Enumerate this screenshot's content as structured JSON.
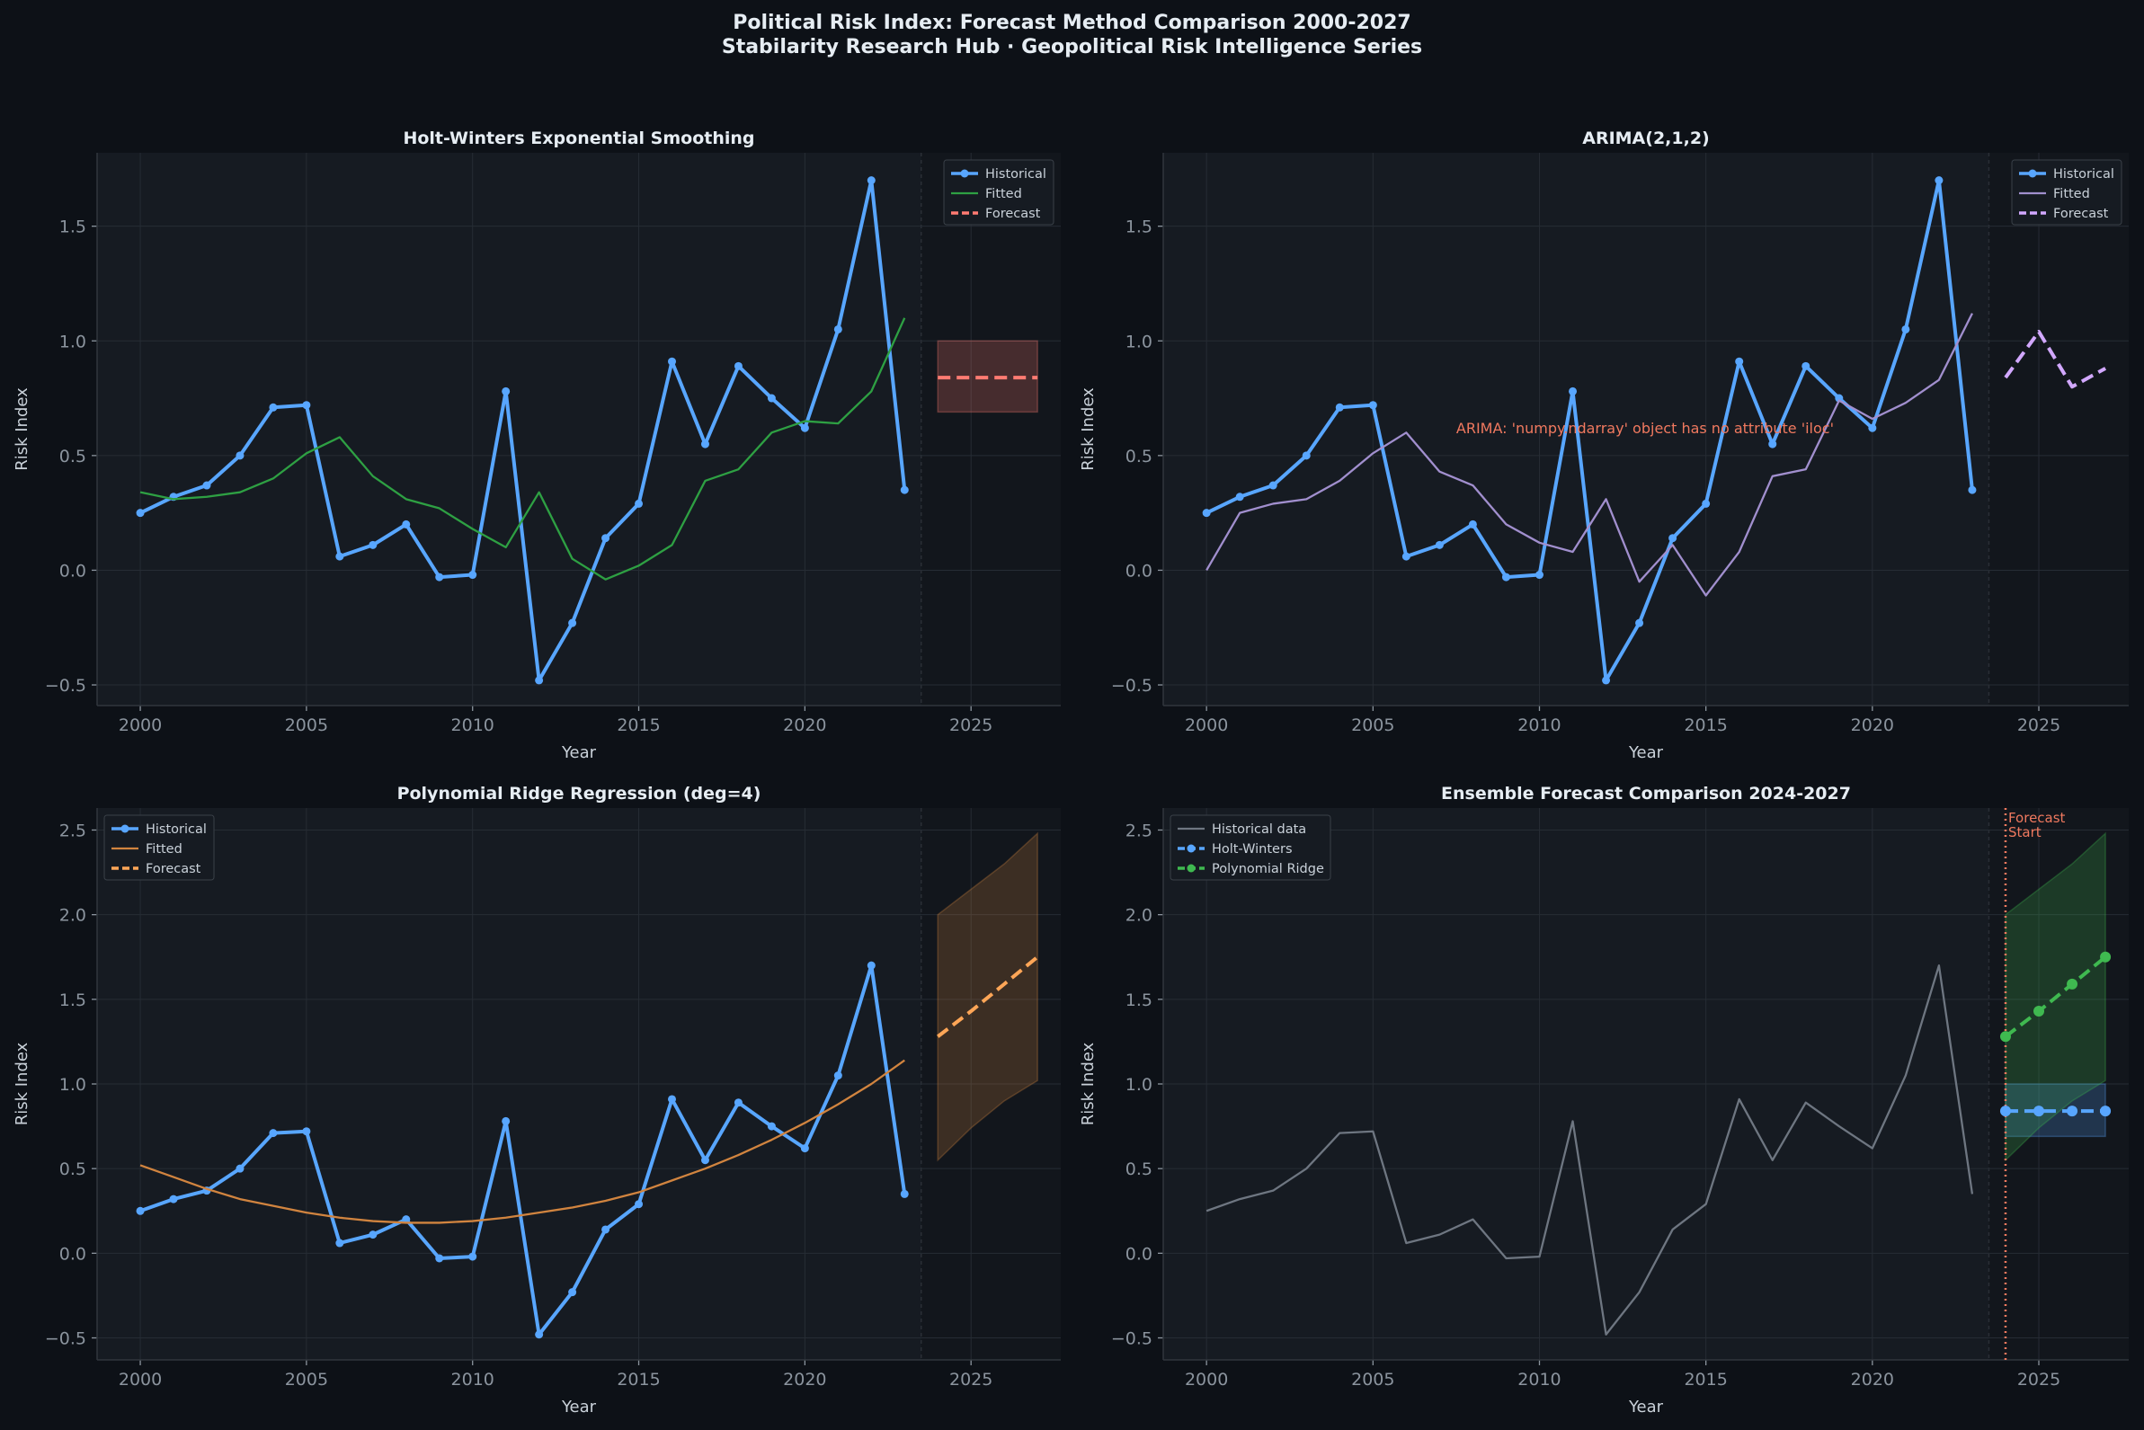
{
  "suptitle": [
    "Political Risk Index: Forecast Method Comparison 2000-2027",
    "Stabilarity Research Hub · Geopolitical Risk Intelligence Series"
  ],
  "colors": {
    "figure_bg": "#0d1117",
    "axes_bg": "#161b22",
    "historical": "#58a6ff",
    "hw_fitted": "#2ea043",
    "hw_forecast": "#ff7b72",
    "arima_fitted": "#a18fce",
    "arima_forecast": "#d2a8ff",
    "poly_fitted": "#d1843f",
    "poly_forecast": "#ffa657",
    "ens_hist": "#6e7681",
    "ens_poly": "#3fb950",
    "forecast_start": "#f0795f",
    "annotation": "#f0795f"
  },
  "chart_data": [
    {
      "type": "line",
      "title": "Holt-Winters Exponential Smoothing",
      "xlabel": "Year",
      "ylabel": "Risk Index",
      "xlim": [
        1998.7,
        2027.7
      ],
      "ylim": [
        -0.59,
        1.82
      ],
      "xticks": [
        2000,
        2005,
        2010,
        2015,
        2020,
        2025
      ],
      "yticks": [
        -0.5,
        0.0,
        0.5,
        1.0,
        1.5
      ],
      "grid": true,
      "legend_position": "top-right",
      "legend": [
        "Historical",
        "Fitted",
        "Forecast"
      ],
      "series": [
        {
          "name": "Historical",
          "x": [
            2000,
            2001,
            2002,
            2003,
            2004,
            2005,
            2006,
            2007,
            2008,
            2009,
            2010,
            2011,
            2012,
            2013,
            2014,
            2015,
            2016,
            2017,
            2018,
            2019,
            2020,
            2021,
            2022,
            2023
          ],
          "y": [
            0.25,
            0.32,
            0.37,
            0.5,
            0.71,
            0.72,
            0.06,
            0.11,
            0.2,
            -0.03,
            -0.02,
            0.78,
            -0.48,
            -0.23,
            0.14,
            0.29,
            0.91,
            0.55,
            0.89,
            0.75,
            0.62,
            1.05,
            1.7,
            0.35
          ],
          "color": "historical",
          "style": "solid-marker"
        },
        {
          "name": "Fitted",
          "x": [
            2000,
            2001,
            2002,
            2003,
            2004,
            2005,
            2006,
            2007,
            2008,
            2009,
            2010,
            2011,
            2012,
            2013,
            2014,
            2015,
            2016,
            2017,
            2018,
            2019,
            2020,
            2021,
            2022,
            2023
          ],
          "y": [
            0.34,
            0.31,
            0.32,
            0.34,
            0.4,
            0.51,
            0.58,
            0.41,
            0.31,
            0.27,
            0.18,
            0.1,
            0.34,
            0.05,
            -0.04,
            0.02,
            0.11,
            0.39,
            0.44,
            0.6,
            0.65,
            0.64,
            0.78,
            1.1
          ],
          "color": "hw_fitted",
          "style": "thin"
        },
        {
          "name": "Forecast",
          "x": [
            2024,
            2025,
            2026,
            2027
          ],
          "y": [
            0.84,
            0.84,
            0.84,
            0.84
          ],
          "color": "hw_forecast",
          "style": "dashed"
        }
      ],
      "bands": [
        {
          "x": [
            2024,
            2025,
            2026,
            2027
          ],
          "lower": [
            0.69,
            0.69,
            0.69,
            0.69
          ],
          "upper": [
            1.0,
            1.0,
            1.0,
            1.0
          ],
          "color": "hw_forecast"
        }
      ]
    },
    {
      "type": "line",
      "title": "ARIMA(2,1,2)",
      "xlabel": "Year",
      "ylabel": "Risk Index",
      "xlim": [
        1998.7,
        2027.7
      ],
      "ylim": [
        -0.59,
        1.82
      ],
      "xticks": [
        2000,
        2005,
        2010,
        2015,
        2020,
        2025
      ],
      "yticks": [
        -0.5,
        0.0,
        0.5,
        1.0,
        1.5
      ],
      "grid": true,
      "legend_position": "top-right",
      "legend": [
        "Historical",
        "Fitted",
        "Forecast"
      ],
      "annotation": {
        "text": "ARIMA: 'numpy.ndarray' object has no attribute 'iloc'",
        "x": 2007.5,
        "y": 0.62
      },
      "series": [
        {
          "name": "Historical",
          "x": [
            2000,
            2001,
            2002,
            2003,
            2004,
            2005,
            2006,
            2007,
            2008,
            2009,
            2010,
            2011,
            2012,
            2013,
            2014,
            2015,
            2016,
            2017,
            2018,
            2019,
            2020,
            2021,
            2022,
            2023
          ],
          "y": [
            0.25,
            0.32,
            0.37,
            0.5,
            0.71,
            0.72,
            0.06,
            0.11,
            0.2,
            -0.03,
            -0.02,
            0.78,
            -0.48,
            -0.23,
            0.14,
            0.29,
            0.91,
            0.55,
            0.89,
            0.75,
            0.62,
            1.05,
            1.7,
            0.35
          ],
          "color": "historical",
          "style": "solid-marker"
        },
        {
          "name": "Fitted",
          "x": [
            2000,
            2001,
            2002,
            2003,
            2004,
            2005,
            2006,
            2007,
            2008,
            2009,
            2010,
            2011,
            2012,
            2013,
            2014,
            2015,
            2016,
            2017,
            2018,
            2019,
            2020,
            2021,
            2022,
            2023
          ],
          "y": [
            0.0,
            0.25,
            0.29,
            0.31,
            0.39,
            0.51,
            0.6,
            0.43,
            0.37,
            0.2,
            0.12,
            0.08,
            0.31,
            -0.05,
            0.11,
            -0.11,
            0.08,
            0.41,
            0.44,
            0.74,
            0.66,
            0.73,
            0.83,
            1.12
          ],
          "color": "arima_fitted",
          "style": "thin"
        },
        {
          "name": "Forecast",
          "x": [
            2024,
            2025,
            2026,
            2027
          ],
          "y": [
            0.84,
            1.04,
            0.8,
            0.88
          ],
          "color": "arima_forecast",
          "style": "dashed"
        }
      ],
      "bands": []
    },
    {
      "type": "line",
      "title": "Polynomial Ridge Regression (deg=4)",
      "xlabel": "Year",
      "ylabel": "Risk Index",
      "xlim": [
        1998.7,
        2027.7
      ],
      "ylim": [
        -0.63,
        2.63
      ],
      "xticks": [
        2000,
        2005,
        2010,
        2015,
        2020,
        2025
      ],
      "yticks": [
        -0.5,
        0.0,
        0.5,
        1.0,
        1.5,
        2.0,
        2.5
      ],
      "grid": true,
      "legend_position": "top-left",
      "legend": [
        "Historical",
        "Fitted",
        "Forecast"
      ],
      "series": [
        {
          "name": "Historical",
          "x": [
            2000,
            2001,
            2002,
            2003,
            2004,
            2005,
            2006,
            2007,
            2008,
            2009,
            2010,
            2011,
            2012,
            2013,
            2014,
            2015,
            2016,
            2017,
            2018,
            2019,
            2020,
            2021,
            2022,
            2023
          ],
          "y": [
            0.25,
            0.32,
            0.37,
            0.5,
            0.71,
            0.72,
            0.06,
            0.11,
            0.2,
            -0.03,
            -0.02,
            0.78,
            -0.48,
            -0.23,
            0.14,
            0.29,
            0.91,
            0.55,
            0.89,
            0.75,
            0.62,
            1.05,
            1.7,
            0.35
          ],
          "color": "historical",
          "style": "solid-marker"
        },
        {
          "name": "Fitted",
          "x": [
            2000,
            2001,
            2002,
            2003,
            2004,
            2005,
            2006,
            2007,
            2008,
            2009,
            2010,
            2011,
            2012,
            2013,
            2014,
            2015,
            2016,
            2017,
            2018,
            2019,
            2020,
            2021,
            2022,
            2023
          ],
          "y": [
            0.52,
            0.45,
            0.38,
            0.32,
            0.28,
            0.24,
            0.21,
            0.19,
            0.18,
            0.18,
            0.19,
            0.21,
            0.24,
            0.27,
            0.31,
            0.36,
            0.43,
            0.5,
            0.58,
            0.67,
            0.77,
            0.88,
            1.0,
            1.14
          ],
          "color": "poly_fitted",
          "style": "thin"
        },
        {
          "name": "Forecast",
          "x": [
            2024,
            2025,
            2026,
            2027
          ],
          "y": [
            1.28,
            1.43,
            1.59,
            1.75
          ],
          "color": "poly_forecast",
          "style": "dashed"
        }
      ],
      "bands": [
        {
          "x": [
            2024,
            2025,
            2026,
            2027
          ],
          "lower": [
            0.55,
            0.74,
            0.9,
            1.02
          ],
          "upper": [
            2.0,
            2.15,
            2.3,
            2.48
          ],
          "color": "poly_fitted"
        }
      ]
    },
    {
      "type": "line",
      "title": "Ensemble Forecast Comparison 2024-2027",
      "xlabel": "Year",
      "ylabel": "Risk Index",
      "xlim": [
        1998.7,
        2027.7
      ],
      "ylim": [
        -0.63,
        2.63
      ],
      "xticks": [
        2000,
        2005,
        2010,
        2015,
        2020,
        2025
      ],
      "yticks": [
        -0.5,
        0.0,
        0.5,
        1.0,
        1.5,
        2.0,
        2.5
      ],
      "grid": true,
      "legend_position": "top-left",
      "legend": [
        "Historical data",
        "Holt-Winters",
        "Polynomial Ridge"
      ],
      "vline": {
        "x": 2024,
        "label": [
          "Forecast",
          "Start"
        ],
        "color": "forecast_start"
      },
      "series": [
        {
          "name": "Historical data",
          "x": [
            2000,
            2001,
            2002,
            2003,
            2004,
            2005,
            2006,
            2007,
            2008,
            2009,
            2010,
            2011,
            2012,
            2013,
            2014,
            2015,
            2016,
            2017,
            2018,
            2019,
            2020,
            2021,
            2022,
            2023
          ],
          "y": [
            0.25,
            0.32,
            0.37,
            0.5,
            0.71,
            0.72,
            0.06,
            0.11,
            0.2,
            -0.03,
            -0.02,
            0.78,
            -0.48,
            -0.23,
            0.14,
            0.29,
            0.91,
            0.55,
            0.89,
            0.75,
            0.62,
            1.05,
            1.7,
            0.35
          ],
          "color": "ens_hist",
          "style": "thin"
        },
        {
          "name": "Holt-Winters",
          "x": [
            2024,
            2025,
            2026,
            2027
          ],
          "y": [
            0.84,
            0.84,
            0.84,
            0.84
          ],
          "color": "historical",
          "style": "dashed-marker"
        },
        {
          "name": "Polynomial Ridge",
          "x": [
            2024,
            2025,
            2026,
            2027
          ],
          "y": [
            1.28,
            1.43,
            1.59,
            1.75
          ],
          "color": "ens_poly",
          "style": "dashed-marker"
        }
      ],
      "bands": [
        {
          "x": [
            2024,
            2025,
            2026,
            2027
          ],
          "lower": [
            0.69,
            0.69,
            0.69,
            0.69
          ],
          "upper": [
            1.0,
            1.0,
            1.0,
            1.0
          ],
          "color": "historical"
        },
        {
          "x": [
            2024,
            2025,
            2026,
            2027
          ],
          "lower": [
            0.55,
            0.74,
            0.9,
            1.02
          ],
          "upper": [
            2.0,
            2.15,
            2.3,
            2.48
          ],
          "color": "ens_poly"
        }
      ]
    }
  ]
}
